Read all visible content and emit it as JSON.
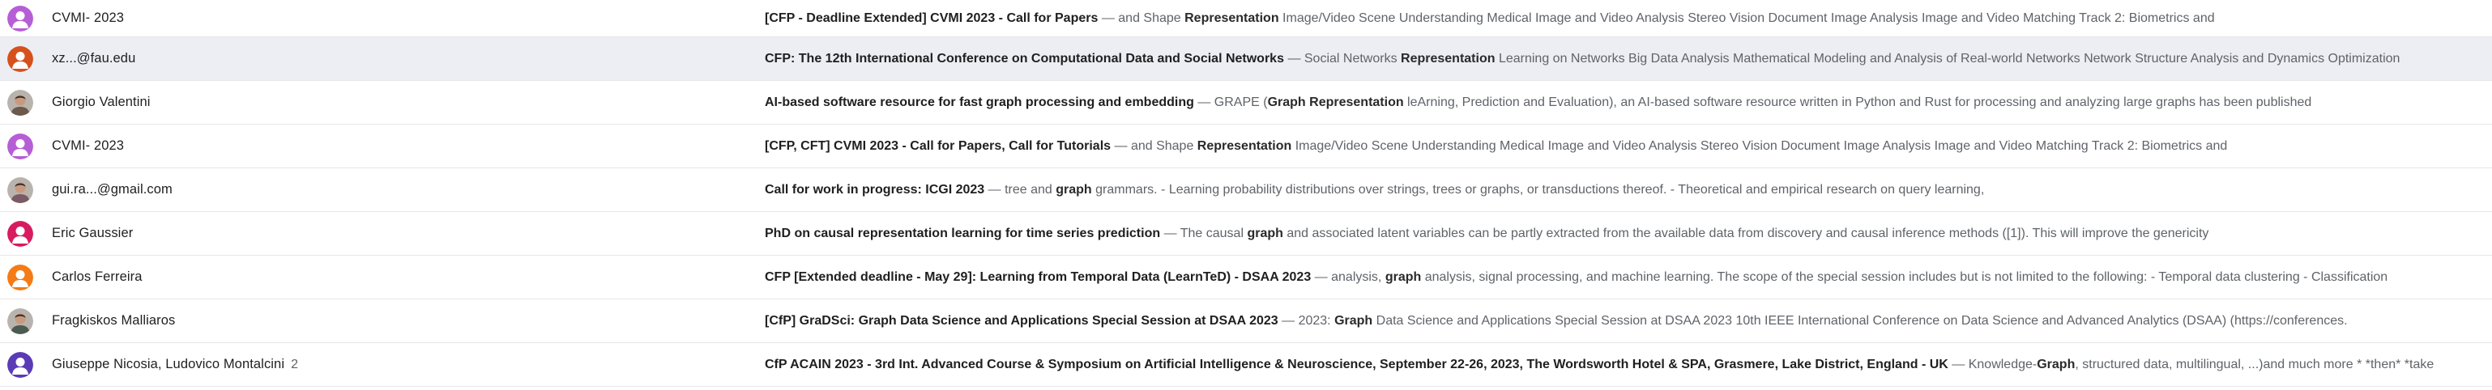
{
  "rows": [
    {
      "sender": "CVMI- 2023",
      "count": "",
      "avatar": "person",
      "avatar_color": "#b65ed6",
      "subject": "[CFP - Deadline Extended] CVMI 2023 - Call for Papers",
      "separator": "—",
      "snippet": [
        {
          "t": " and Shape ",
          "b": false
        },
        {
          "t": "Representation",
          "b": true
        },
        {
          "t": " Image/Video Scene Understanding Medical Image and Video Analysis Stereo Vision Document Image Analysis Image and Video Matching Track 2: Biometrics and",
          "b": false
        }
      ],
      "selected": false
    },
    {
      "sender": "xz...@fau.edu",
      "count": "",
      "avatar": "person",
      "avatar_color": "#d6511b",
      "subject": "CFP: The 12th International Conference on Computational Data and Social Networks",
      "separator": "—",
      "snippet": [
        {
          "t": " Social Networks ",
          "b": false
        },
        {
          "t": "Representation",
          "b": true
        },
        {
          "t": " Learning on Networks Big Data Analysis Mathematical Modeling and Analysis of Real-world Networks Network Structure Analysis and Dynamics Optimization",
          "b": false
        }
      ],
      "selected": true
    },
    {
      "sender": "Giorgio Valentini",
      "count": "",
      "avatar": "photo",
      "avatar_color": "#6b5a4c",
      "subject": "AI-based software resource for fast graph processing and embedding",
      "separator": "—",
      "snippet": [
        {
          "t": " GRAPE (",
          "b": false
        },
        {
          "t": "Graph Representation",
          "b": true
        },
        {
          "t": " leArning, Prediction and Evaluation), an AI-based software resource written in Python and Rust for processing and analyzing large graphs has been published",
          "b": false
        }
      ],
      "selected": false
    },
    {
      "sender": "CVMI- 2023",
      "count": "",
      "avatar": "person",
      "avatar_color": "#b65ed6",
      "subject": "[CFP, CFT] CVMI 2023 - Call for Papers, Call for Tutorials",
      "separator": "—",
      "snippet": [
        {
          "t": " and Shape ",
          "b": false
        },
        {
          "t": "Representation",
          "b": true
        },
        {
          "t": " Image/Video Scene Understanding Medical Image and Video Analysis Stereo Vision Document Image Analysis Image and Video Matching Track 2: Biometrics and",
          "b": false
        }
      ],
      "selected": false
    },
    {
      "sender": "gui.ra...@gmail.com",
      "count": "",
      "avatar": "photo",
      "avatar_color": "#7a5a64",
      "subject": "Call for work in progress: ICGI 2023",
      "separator": "—",
      "snippet": [
        {
          "t": " tree and ",
          "b": false
        },
        {
          "t": "graph",
          "b": true
        },
        {
          "t": " grammars. - Learning probability distributions over strings, trees or graphs, or transductions thereof. - Theoretical and empirical research on query learning,",
          "b": false
        }
      ],
      "selected": false
    },
    {
      "sender": "Eric Gaussier",
      "count": "",
      "avatar": "person",
      "avatar_color": "#d81b60",
      "subject": "PhD on causal representation learning for time series prediction",
      "separator": "—",
      "snippet": [
        {
          "t": " The causal ",
          "b": false
        },
        {
          "t": "graph",
          "b": true
        },
        {
          "t": " and associated latent variables can be partly extracted from the available data from discovery and causal inference methods ([1]). This will improve the genericity",
          "b": false
        }
      ],
      "selected": false
    },
    {
      "sender": "Carlos Ferreira",
      "count": "",
      "avatar": "person",
      "avatar_color": "#f47b16",
      "subject": "CFP [Extended deadline - May 29]: Learning from Temporal Data (LearnTeD) - DSAA 2023",
      "separator": "—",
      "snippet": [
        {
          "t": " analysis, ",
          "b": false
        },
        {
          "t": "graph",
          "b": true
        },
        {
          "t": " analysis, signal processing, and machine learning. The scope of the special session includes but is not limited to the following: - Temporal data clustering - Classification",
          "b": false
        }
      ],
      "selected": false
    },
    {
      "sender": "Fragkiskos Malliaros",
      "count": "",
      "avatar": "photo",
      "avatar_color": "#4b5b52",
      "subject": "[CfP] GraDSci: Graph Data Science and Applications Special Session at DSAA 2023",
      "separator": "—",
      "snippet": [
        {
          "t": " 2023: ",
          "b": false
        },
        {
          "t": "Graph",
          "b": true
        },
        {
          "t": " Data Science and Applications Special Session at DSAA 2023 10th IEEE International Conference on Data Science and Advanced Analytics (DSAA) (https://conferences.",
          "b": false
        }
      ],
      "selected": false
    },
    {
      "sender": "Giuseppe Nicosia, Ludovico Montalcini",
      "count": "2",
      "avatar": "person",
      "avatar_color": "#5a3bb5",
      "subject": "CfP ACAIN 2023 - 3rd Int. Advanced Course & Symposium on Artificial Intelligence & Neuroscience, September 22-26, 2023, The Wordsworth Hotel & SPA, Grasmere, Lake District, England - UK",
      "separator": "—",
      "snippet": [
        {
          "t": " Knowledge-",
          "b": false
        },
        {
          "t": "Graph",
          "b": true
        },
        {
          "t": ", structured data, multilingual, ...)and much more * *then* *take",
          "b": false
        }
      ],
      "selected": false
    }
  ]
}
